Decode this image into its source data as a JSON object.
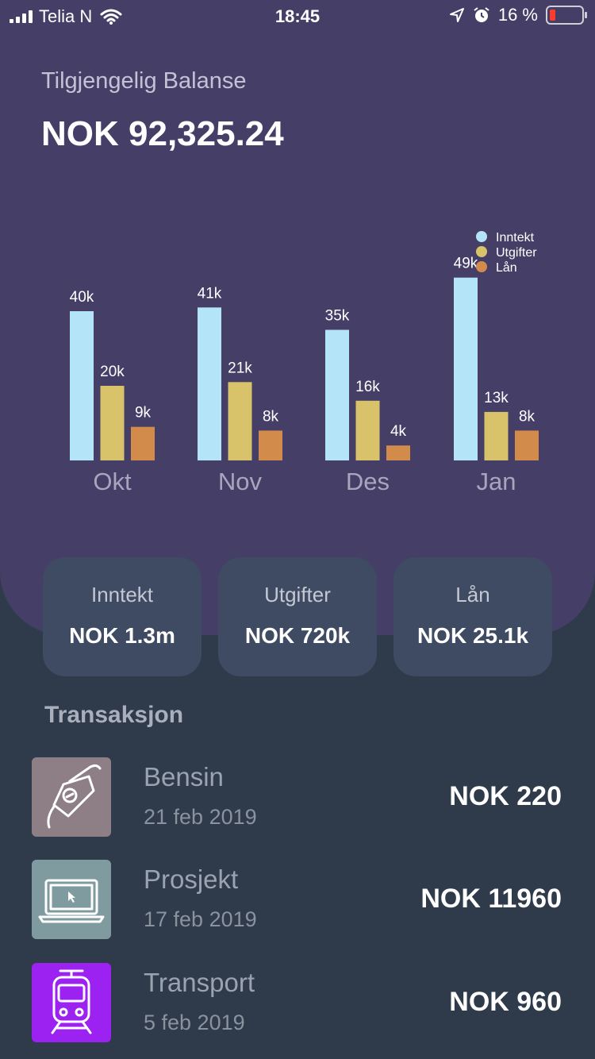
{
  "status_bar": {
    "carrier": "Telia N",
    "time": "18:45",
    "battery_text": "16 %",
    "icons": [
      "signal-icon",
      "wifi-icon",
      "location-arrow-icon",
      "alarm-icon",
      "battery-icon"
    ]
  },
  "balance": {
    "label": "Tilgjengelig Balanse",
    "value": "NOK 92,325.24"
  },
  "chart_data": {
    "type": "bar",
    "categories": [
      "Okt",
      "Nov",
      "Des",
      "Jan"
    ],
    "series": [
      {
        "name": "Inntekt",
        "color": "#b4e4f8",
        "values": [
          40,
          41,
          35,
          49
        ],
        "labels": [
          "40k",
          "41k",
          "35k",
          "49k"
        ]
      },
      {
        "name": "Utgifter",
        "color": "#d8c36a",
        "values": [
          20,
          21,
          16,
          13
        ],
        "labels": [
          "20k",
          "21k",
          "16k",
          "13k"
        ]
      },
      {
        "name": "Lån",
        "color": "#d38b4c",
        "values": [
          9,
          8,
          4,
          8
        ],
        "labels": [
          "9k",
          "8k",
          "4k",
          "8k"
        ]
      }
    ],
    "legend_position": "top-right",
    "grid": false
  },
  "summary_cards": [
    {
      "label": "Inntekt",
      "value": "NOK 1.3m"
    },
    {
      "label": "Utgifter",
      "value": "NOK 720k"
    },
    {
      "label": "Lån",
      "value": "NOK 25.1k"
    }
  ],
  "transactions_title": "Transaksjon",
  "transactions": [
    {
      "name": "Bensin",
      "date": "21 feb 2019",
      "amount": "NOK 220",
      "icon": "fuel-nozzle-icon",
      "icon_bg": "#8e7f86"
    },
    {
      "name": "Prosjekt",
      "date": "17 feb 2019",
      "amount": "NOK 11960",
      "icon": "laptop-icon",
      "icon_bg": "#7f9ba0"
    },
    {
      "name": "Transport",
      "date": "5 feb 2019",
      "amount": "NOK 960",
      "icon": "tram-icon",
      "icon_bg": "#9b22f0"
    }
  ]
}
